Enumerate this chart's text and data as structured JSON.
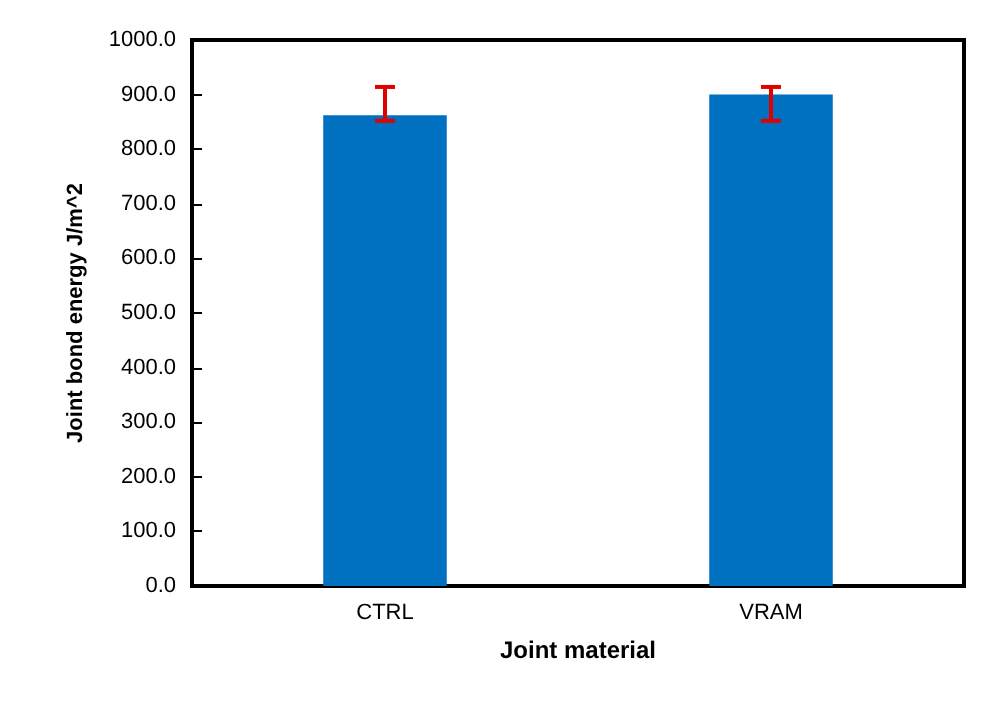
{
  "chart_data": {
    "type": "bar",
    "xlabel": "Joint material",
    "ylabel": "Joint bond energy J/m^2",
    "categories": [
      "CTRL",
      "VRAM"
    ],
    "values": [
      862,
      900
    ],
    "color": "#0070c0",
    "errors": [
      [
        852,
        914
      ],
      [
        852,
        914
      ]
    ],
    "ylim": [
      0,
      1000
    ],
    "yticks": [
      {
        "value": 0,
        "label": "0.0"
      },
      {
        "value": 100,
        "label": "100.0"
      },
      {
        "value": 200,
        "label": "200.0"
      },
      {
        "value": 300,
        "label": "300.0"
      },
      {
        "value": 400,
        "label": "400.0"
      },
      {
        "value": 500,
        "label": "500.0"
      },
      {
        "value": 600,
        "label": "600.0"
      },
      {
        "value": 700,
        "label": "700.0"
      },
      {
        "value": 800,
        "label": "800.0"
      },
      {
        "value": 900,
        "label": "900.0"
      },
      {
        "value": 1000,
        "label": "1000.0"
      }
    ],
    "grid": false
  }
}
